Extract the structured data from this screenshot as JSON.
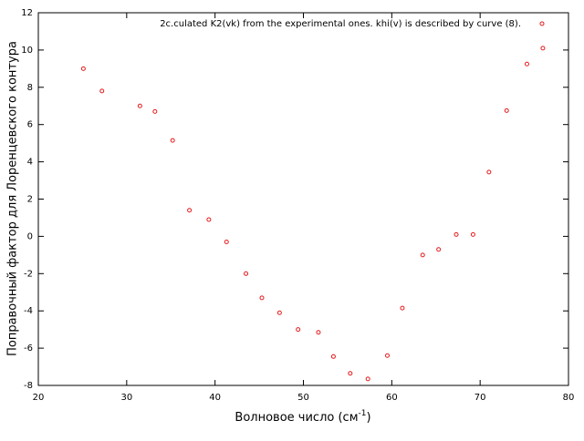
{
  "chart_data": {
    "type": "scatter",
    "x_label": {
      "text": "Волновое число (см",
      "sup": "-1",
      "end": ")"
    },
    "y_label": "Поправочный фактор для Лоренцевского контура",
    "series": [
      {
        "name": "2c.culated K2(vk) from the experimental ones. khi(v) is described by curve (8).",
        "color": "#e41a1c",
        "x": [
          25.1,
          27.2,
          31.5,
          33.2,
          35.2,
          37.1,
          39.3,
          41.3,
          43.5,
          45.3,
          47.3,
          49.4,
          51.7,
          53.4,
          55.3,
          57.3,
          59.5,
          61.2,
          63.5,
          65.3,
          67.3,
          69.2,
          71.0,
          73.0,
          75.3,
          77.1
        ],
        "values": [
          9.0,
          7.8,
          7.0,
          6.7,
          5.15,
          1.4,
          0.9,
          -0.3,
          -2.0,
          -3.3,
          -4.1,
          -5.0,
          -5.15,
          -6.45,
          -7.35,
          -7.65,
          -6.4,
          -3.85,
          -1.0,
          -0.7,
          0.1,
          0.1,
          3.45,
          6.75,
          9.25,
          10.1
        ]
      }
    ],
    "xlim": [
      20,
      80
    ],
    "xticks": [
      20,
      30,
      40,
      50,
      60,
      70,
      80
    ],
    "ylim": [
      -8,
      12
    ],
    "yticks": [
      -8,
      -6,
      -4,
      -2,
      0,
      2,
      4,
      6,
      8,
      10,
      12
    ],
    "legend": "top-right"
  }
}
